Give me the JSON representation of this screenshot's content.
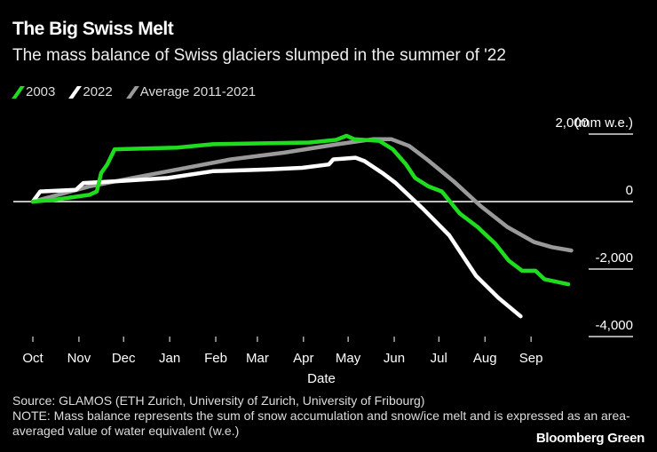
{
  "header": {
    "title": "The Big Swiss Melt",
    "subtitle": "The mass balance of Swiss glaciers slumped in the summer of '22"
  },
  "legend": [
    {
      "label": "2003",
      "color": "#1fdc1f"
    },
    {
      "label": "2022",
      "color": "#ffffff"
    },
    {
      "label": "Average 2011-2021",
      "color": "#9a9a9a"
    }
  ],
  "footer": {
    "source": "Source: GLAMOS (ETH Zurich, University of Zurich, University of Fribourg)",
    "note": "NOTE: Mass balance represents the sum of snow accumulation and snow/ice melt and is expressed as an area-averaged value of water equivalent (w.e.)",
    "brand": "Bloomberg Green"
  },
  "chart_data": {
    "type": "line",
    "title": "The Big Swiss Melt",
    "subtitle": "The mass balance of Swiss glaciers slumped in the summer of '22",
    "xlabel": "Date",
    "ylabel": "(mm w.e.)",
    "x_unit": "days since Oct 1",
    "xlim": [
      0,
      365
    ],
    "ylim": [
      -4200,
      2300
    ],
    "x_ticks": [
      {
        "label": "Oct",
        "value": 0
      },
      {
        "label": "Nov",
        "value": 31
      },
      {
        "label": "Dec",
        "value": 61
      },
      {
        "label": "Jan",
        "value": 92
      },
      {
        "label": "Feb",
        "value": 123
      },
      {
        "label": "Mar",
        "value": 151
      },
      {
        "label": "Apr",
        "value": 182
      },
      {
        "label": "May",
        "value": 212
      },
      {
        "label": "Jun",
        "value": 243
      },
      {
        "label": "Jul",
        "value": 273
      },
      {
        "label": "Aug",
        "value": 304
      },
      {
        "label": "Sep",
        "value": 335
      }
    ],
    "y_ticks": [
      {
        "label": "2,000",
        "value": 2000,
        "unit_label": "(mm w.e.)"
      },
      {
        "label": "0",
        "value": 0
      },
      {
        "label": "-2,000",
        "value": -2000
      },
      {
        "label": "-4,000",
        "value": -4000
      }
    ],
    "grid": "horizontal",
    "legend_position": "top-left",
    "series": [
      {
        "name": "2003",
        "color": "#1fdc1f",
        "points": [
          [
            0,
            0
          ],
          [
            14,
            50
          ],
          [
            38,
            200
          ],
          [
            43,
            300
          ],
          [
            46,
            850
          ],
          [
            50,
            1100
          ],
          [
            55,
            1550
          ],
          [
            97,
            1600
          ],
          [
            121,
            1700
          ],
          [
            186,
            1750
          ],
          [
            204,
            1830
          ],
          [
            211,
            1950
          ],
          [
            216,
            1850
          ],
          [
            233,
            1800
          ],
          [
            242,
            1550
          ],
          [
            251,
            1100
          ],
          [
            257,
            700
          ],
          [
            266,
            450
          ],
          [
            275,
            300
          ],
          [
            287,
            -350
          ],
          [
            299,
            -750
          ],
          [
            311,
            -1250
          ],
          [
            320,
            -1750
          ],
          [
            329,
            -2050
          ],
          [
            338,
            -2050
          ],
          [
            344,
            -2300
          ],
          [
            360,
            -2450
          ]
        ]
      },
      {
        "name": "2022",
        "color": "#ffffff",
        "points": [
          [
            0,
            0
          ],
          [
            5,
            300
          ],
          [
            29,
            350
          ],
          [
            34,
            550
          ],
          [
            55,
            600
          ],
          [
            91,
            700
          ],
          [
            121,
            900
          ],
          [
            157,
            950
          ],
          [
            181,
            1000
          ],
          [
            199,
            1100
          ],
          [
            202,
            1250
          ],
          [
            217,
            1300
          ],
          [
            223,
            1200
          ],
          [
            235,
            850
          ],
          [
            244,
            550
          ],
          [
            262,
            -200
          ],
          [
            280,
            -1000
          ],
          [
            298,
            -2200
          ],
          [
            313,
            -2850
          ],
          [
            328,
            -3400
          ]
        ]
      },
      {
        "name": "Average 2011-2021",
        "color": "#9a9a9a",
        "points": [
          [
            0,
            0
          ],
          [
            38,
            450
          ],
          [
            67,
            700
          ],
          [
            97,
            950
          ],
          [
            133,
            1250
          ],
          [
            169,
            1450
          ],
          [
            205,
            1700
          ],
          [
            229,
            1850
          ],
          [
            241,
            1850
          ],
          [
            253,
            1650
          ],
          [
            265,
            1250
          ],
          [
            283,
            600
          ],
          [
            301,
            -130
          ],
          [
            319,
            -750
          ],
          [
            337,
            -1200
          ],
          [
            349,
            -1350
          ],
          [
            362,
            -1450
          ]
        ]
      }
    ]
  }
}
